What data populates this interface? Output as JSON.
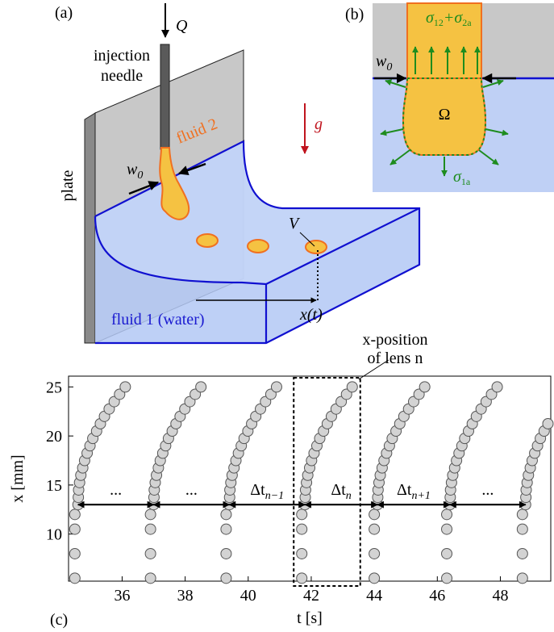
{
  "panel_a": {
    "label": "(a)",
    "flow": "Q",
    "needle": [
      "injection",
      "needle"
    ],
    "fluid2": "fluid 2",
    "plate": "plate",
    "gravity": "g",
    "width": {
      "base": "w",
      "sub": "0"
    },
    "volume": "V",
    "position": "x(t)",
    "fluid1": "fluid 1 (water)"
  },
  "panel_b": {
    "label": "(b)",
    "tension_top": [
      "σ",
      "12",
      "+σ",
      "2a"
    ],
    "width": {
      "base": "w",
      "sub": "0"
    },
    "domain": "Ω",
    "tension_side": [
      "σ",
      "1a"
    ]
  },
  "chart_data": {
    "type": "scatter",
    "panel_label": "(c)",
    "xlabel": "t [s]",
    "ylabel": "x [mm]",
    "color": "#d3d3d3",
    "xlim": [
      34.3,
      49.6
    ],
    "ylim": [
      5.2,
      26.1
    ],
    "xticks": [
      36,
      38,
      40,
      42,
      44,
      46,
      48
    ],
    "yticks": [
      10,
      15,
      20,
      25
    ],
    "annotations": [
      {
        "text": "..."
      },
      {
        "text": "..."
      },
      {
        "text": "Δt",
        "sub": "n−1"
      },
      {
        "text": "Δt",
        "sub": "n"
      },
      {
        "text": "Δt",
        "sub": "n+1"
      },
      {
        "text": "..."
      }
    ],
    "callout": [
      "x-position",
      "of lens n"
    ],
    "series": [
      {
        "x": [
          34.5,
          34.5,
          34.5,
          34.5,
          34.6,
          34.61,
          34.62,
          34.65,
          34.69,
          34.75,
          34.81,
          34.89,
          34.98,
          35.07,
          35.19,
          35.31,
          35.44,
          35.59,
          35.75,
          35.92,
          36.1
        ],
        "values": [
          5.5,
          8,
          10.5,
          12,
          13,
          13.75,
          14.5,
          15.25,
          16,
          16.75,
          17.5,
          18.25,
          19,
          19.75,
          20.5,
          21.25,
          22,
          22.75,
          23.5,
          24.25,
          25
        ]
      },
      {
        "x": [
          36.9,
          36.9,
          36.9,
          36.9,
          37.0,
          37.01,
          37.02,
          37.05,
          37.09,
          37.15,
          37.21,
          37.29,
          37.38,
          37.47,
          37.59,
          37.71,
          37.84,
          37.99,
          38.15,
          38.32,
          38.5
        ],
        "values": [
          5.5,
          8,
          10.5,
          12,
          13,
          13.75,
          14.5,
          15.25,
          16,
          16.75,
          17.5,
          18.25,
          19,
          19.75,
          20.5,
          21.25,
          22,
          22.75,
          23.5,
          24.25,
          25
        ]
      },
      {
        "x": [
          39.3,
          39.3,
          39.3,
          39.3,
          39.4,
          39.41,
          39.42,
          39.45,
          39.49,
          39.55,
          39.61,
          39.69,
          39.78,
          39.87,
          39.99,
          40.11,
          40.24,
          40.39,
          40.55,
          40.72,
          40.9
        ],
        "values": [
          5.5,
          8,
          10.5,
          12,
          13,
          13.75,
          14.5,
          15.25,
          16,
          16.75,
          17.5,
          18.25,
          19,
          19.75,
          20.5,
          21.25,
          22,
          22.75,
          23.5,
          24.25,
          25
        ]
      },
      {
        "x": [
          41.7,
          41.7,
          41.7,
          41.7,
          41.8,
          41.81,
          41.82,
          41.85,
          41.89,
          41.95,
          42.01,
          42.09,
          42.18,
          42.27,
          42.39,
          42.51,
          42.64,
          42.79,
          42.95,
          43.12,
          43.3
        ],
        "values": [
          5.5,
          8,
          10.5,
          12,
          13,
          13.75,
          14.5,
          15.25,
          16,
          16.75,
          17.5,
          18.25,
          19,
          19.75,
          20.5,
          21.25,
          22,
          22.75,
          23.5,
          24.25,
          25
        ]
      },
      {
        "x": [
          44.0,
          44.0,
          44.0,
          44.0,
          44.1,
          44.11,
          44.12,
          44.15,
          44.19,
          44.25,
          44.31,
          44.39,
          44.48,
          44.57,
          44.69,
          44.81,
          44.94,
          45.09,
          45.25,
          45.42,
          45.6
        ],
        "values": [
          5.5,
          8,
          10.5,
          12,
          13,
          13.75,
          14.5,
          15.25,
          16,
          16.75,
          17.5,
          18.25,
          19,
          19.75,
          20.5,
          21.25,
          22,
          22.75,
          23.5,
          24.25,
          25
        ]
      },
      {
        "x": [
          46.3,
          46.3,
          46.3,
          46.3,
          46.4,
          46.41,
          46.42,
          46.45,
          46.49,
          46.55,
          46.61,
          46.69,
          46.78,
          46.87,
          46.99,
          47.11,
          47.24,
          47.39,
          47.55,
          47.72,
          47.9
        ],
        "values": [
          5.5,
          8,
          10.5,
          12,
          13,
          13.75,
          14.5,
          15.25,
          16,
          16.75,
          17.5,
          18.25,
          19,
          19.75,
          20.5,
          21.25,
          22,
          22.75,
          23.5,
          24.25,
          25
        ]
      },
      {
        "x": [
          48.7,
          48.7,
          48.7,
          48.7,
          48.8,
          48.81,
          48.82,
          48.85,
          48.89,
          48.95,
          49.01,
          49.09,
          49.18,
          49.27,
          49.39,
          49.51
        ],
        "values": [
          5.5,
          8,
          10.5,
          12,
          13,
          13.75,
          14.5,
          15.25,
          16,
          16.75,
          17.5,
          18.25,
          19,
          19.75,
          20.5,
          21.25
        ]
      }
    ]
  }
}
